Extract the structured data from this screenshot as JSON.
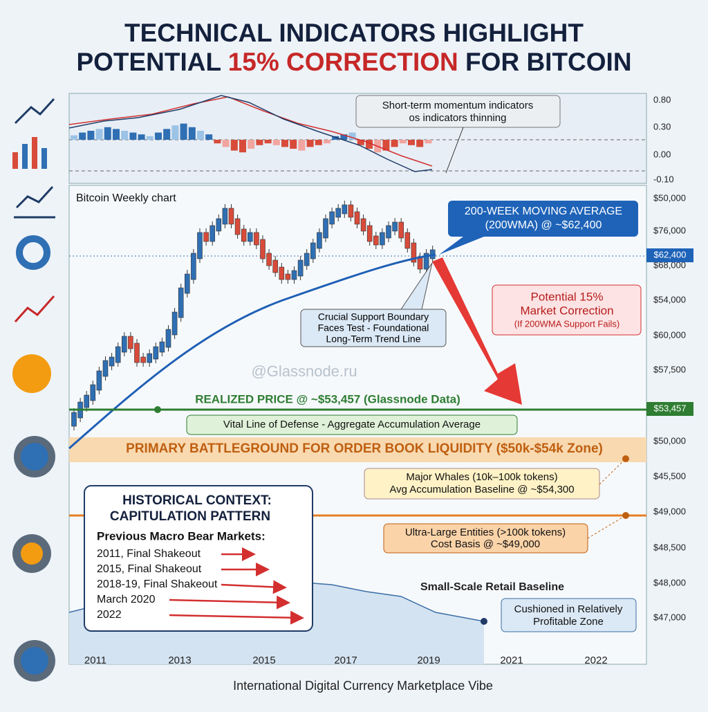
{
  "title": {
    "line1": "TECHNICAL INDICATORS HIGHLIGHT",
    "line2_start": "POTENTIAL ",
    "line2_highlight": "15% CORRECTION",
    "line2_end": " FOR BITCOIN"
  },
  "indicator": {
    "callout": [
      "Short-term momentum indicators",
      "os indicators thinning"
    ],
    "axis": [
      "0.80",
      "0.30",
      "0.00",
      "-0.10"
    ]
  },
  "chart": {
    "label": "Bitcoin Weekly chart",
    "watermark": "@Glassnode.ru",
    "price_axis": [
      "$50,000",
      "$76,000",
      "$68,000",
      "$54,000",
      "$60,000",
      "$57,500",
      "$50,000",
      "$45,500",
      "$49,000",
      "$48,500",
      "$48,000",
      "$47,000"
    ],
    "tags": [
      "$62,400",
      "$53,457"
    ],
    "years": [
      "2011",
      "2013",
      "2015",
      "2017",
      "2019",
      "2021",
      "2022"
    ]
  },
  "callouts": {
    "wma": [
      "200-WEEK MOVING AVERAGE",
      "(200WMA) @ ~$62,400"
    ],
    "correction": [
      "Potential 15%",
      "Market Correction",
      "(If 200WMA Support Fails)"
    ],
    "support": [
      "Crucial Support Boundary",
      "Faces Test - Foundational",
      "Long-Term Trend Line"
    ],
    "realized": "REALIZED PRICE @ ~$53,457 (Glassnode Data)",
    "defense": "Vital Line of Defense - Aggregate Accumulation Average",
    "zone": "PRIMARY BATTLEGROUND FOR ORDER BOOK LIQUIDITY ($50k-$54k Zone)",
    "whales": [
      "Major Whales (10k–100k tokens)",
      "Avg Accumulation Baseline @ ~$54,300"
    ],
    "ultra": [
      "Ultra-Large Entities (>100k tokens)",
      "Cost Basis @ ~$49,000"
    ],
    "retail": "Small-Scale Retail Baseline",
    "cushion": [
      "Cushioned in Relatively",
      "Profitable Zone"
    ]
  },
  "history": {
    "heading": [
      "HISTORICAL CONTEXT:",
      "CAPITULATION PATTERN"
    ],
    "subheading": "Previous Macro Bear Markets:",
    "items": [
      "2011, Final Shakeout",
      "2015, Final Shakeout",
      "2018-19, Final Shakeout",
      "March 2020",
      "2022"
    ]
  },
  "footer": "International Digital Currency Marketplace Vibe"
}
